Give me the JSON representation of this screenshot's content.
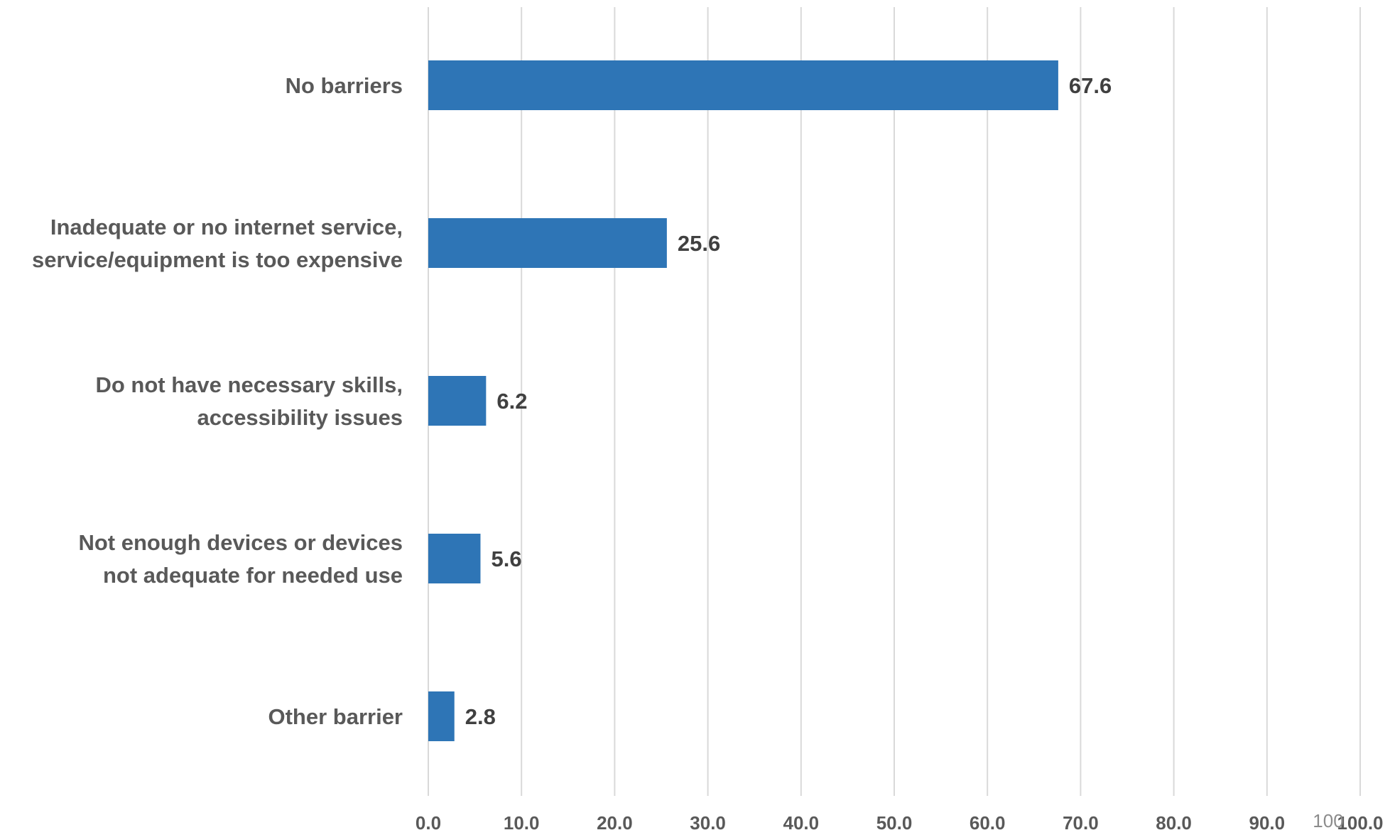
{
  "chart_data": {
    "type": "bar",
    "orientation": "horizontal",
    "title": "",
    "xlabel": "",
    "ylabel": "",
    "categories": [
      "No barriers",
      "Inadequate or no internet service, service/equipment is too expensive",
      "Do not have necessary skills, accessibility issues",
      "Not enough devices or devices not adequate for needed use",
      "Other barrier"
    ],
    "category_label_lines": [
      [
        "No barriers"
      ],
      [
        "Inadequate or no internet service,",
        "service/equipment is too expensive"
      ],
      [
        "Do not have necessary skills,",
        "accessibility issues"
      ],
      [
        "Not enough devices or devices",
        "not adequate for needed use"
      ],
      [
        "Other barrier"
      ]
    ],
    "values": [
      67.6,
      25.6,
      6.2,
      5.6,
      2.8
    ],
    "data_labels": [
      "67.6",
      "25.6",
      "6.2",
      "5.6",
      "2.8"
    ],
    "xlim": [
      0,
      100
    ],
    "x_ticks": [
      0,
      10,
      20,
      30,
      40,
      50,
      60,
      70,
      80,
      90,
      100
    ],
    "x_tick_labels": [
      "0.0",
      "10.0",
      "20.0",
      "30.0",
      "40.0",
      "50.0",
      "60.0",
      "70.0",
      "80.0",
      "90.0",
      "100.0"
    ],
    "extra_axis_text": "100",
    "grid": true,
    "legend": "none",
    "colors": {
      "bar": "#2e75b6",
      "grid": "#d9d9d9",
      "category_text": "#595959",
      "data_label_text": "#404040"
    }
  }
}
